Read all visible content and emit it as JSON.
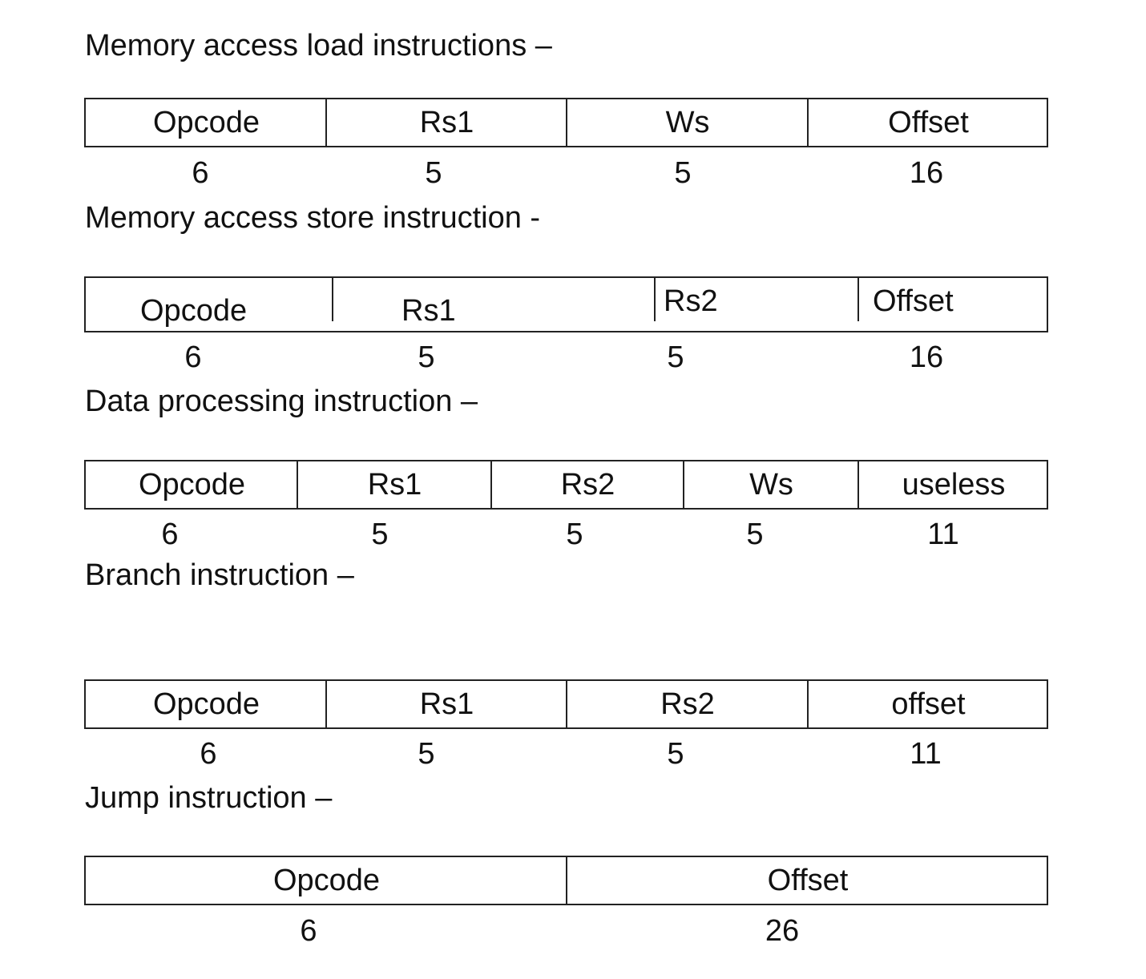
{
  "sections": [
    {
      "heading": "Memory access load instructions –",
      "fields": [
        "Opcode",
        "Rs1",
        "Ws",
        "Offset"
      ],
      "bits": [
        "6",
        "5",
        "5",
        "16"
      ]
    },
    {
      "heading": "Memory access store instruction -",
      "fields": [
        "Opcode",
        "Rs1",
        "Rs2",
        "Offset"
      ],
      "bits": [
        "6",
        "5",
        "5",
        "16"
      ]
    },
    {
      "heading": "Data processing instruction –",
      "fields": [
        "Opcode",
        "Rs1",
        "Rs2",
        "Ws",
        "useless"
      ],
      "bits": [
        "6",
        "5",
        "5",
        "5",
        "11"
      ]
    },
    {
      "heading": "Branch instruction –",
      "fields": [
        "Opcode",
        "Rs1",
        "Rs2",
        "offset"
      ],
      "bits": [
        "6",
        "5",
        "5",
        "11"
      ]
    },
    {
      "heading": "Jump instruction –",
      "fields": [
        "Opcode",
        "Offset"
      ],
      "bits": [
        "6",
        "26"
      ]
    }
  ]
}
